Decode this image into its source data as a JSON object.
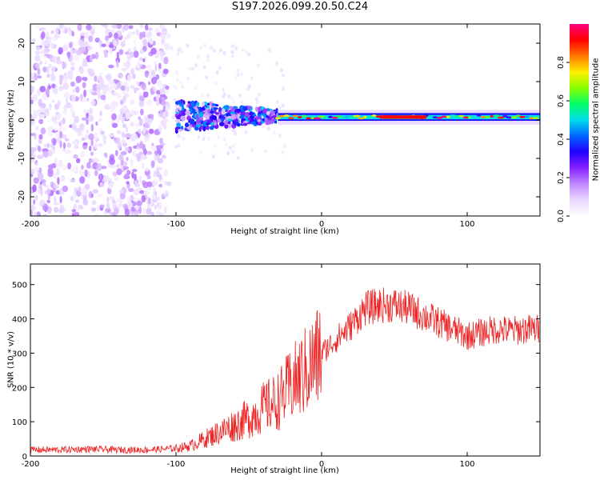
{
  "title": "S197.2026.099.20.50.C24",
  "colors": {
    "snr_line": "#ee2222",
    "colormap": [
      "#ffffff",
      "#e8d8ff",
      "#c088ff",
      "#8822ff",
      "#2200ff",
      "#0066ff",
      "#00ddee",
      "#00ff66",
      "#88ff00",
      "#ffee00",
      "#ff7700",
      "#ff0000",
      "#ff0080"
    ]
  },
  "chart_data": [
    {
      "type": "heatmap",
      "title": "S197.2026.099.20.50.C24",
      "xlabel": "Height of straight line (km)",
      "ylabel": "Frequency (Hz)",
      "xlim": [
        -200,
        150
      ],
      "ylim": [
        -25,
        25
      ],
      "x_ticks": [
        -200,
        -100,
        0,
        100
      ],
      "y_ticks": [
        -20,
        -10,
        0,
        10,
        20
      ],
      "colorbar": {
        "label": "Normalized spectral amplitude",
        "range": [
          0,
          1
        ],
        "ticks": [
          "0.0",
          "0.2",
          "0.4",
          "0.6",
          "0.8"
        ]
      },
      "description_bands": [
        {
          "x_range": [
            -200,
            -105
          ],
          "freq_range": [
            -25,
            25
          ],
          "amplitude_range": [
            0.05,
            0.1
          ]
        },
        {
          "x_range": [
            -100,
            -30
          ],
          "freq_range": [
            -3,
            5
          ],
          "amplitude_range": [
            0.1,
            0.5
          ]
        },
        {
          "x_range": [
            -30,
            150
          ],
          "freq_range": [
            0,
            2
          ],
          "amplitude_range": [
            0.3,
            1.0
          ]
        }
      ]
    },
    {
      "type": "line",
      "xlabel": "Height of straight line (km)",
      "ylabel": "SNR (10 * v/v)",
      "xlim": [
        -200,
        150
      ],
      "ylim": [
        0,
        560
      ],
      "x_ticks": [
        -200,
        -100,
        0,
        100
      ],
      "y_ticks": [
        0,
        100,
        200,
        300,
        400,
        500
      ],
      "series": [
        {
          "name": "SNR",
          "x": [
            -200,
            -180,
            -160,
            -140,
            -120,
            -100,
            -90,
            -80,
            -70,
            -60,
            -50,
            -40,
            -30,
            -20,
            -10,
            0,
            10,
            20,
            30,
            40,
            50,
            60,
            70,
            80,
            90,
            100,
            110,
            120,
            130,
            140,
            150
          ],
          "y": [
            18,
            18,
            20,
            18,
            18,
            22,
            30,
            50,
            70,
            90,
            110,
            140,
            160,
            210,
            250,
            300,
            340,
            380,
            430,
            440,
            440,
            430,
            410,
            390,
            370,
            350,
            360,
            370,
            365,
            370,
            370
          ]
        }
      ]
    }
  ]
}
